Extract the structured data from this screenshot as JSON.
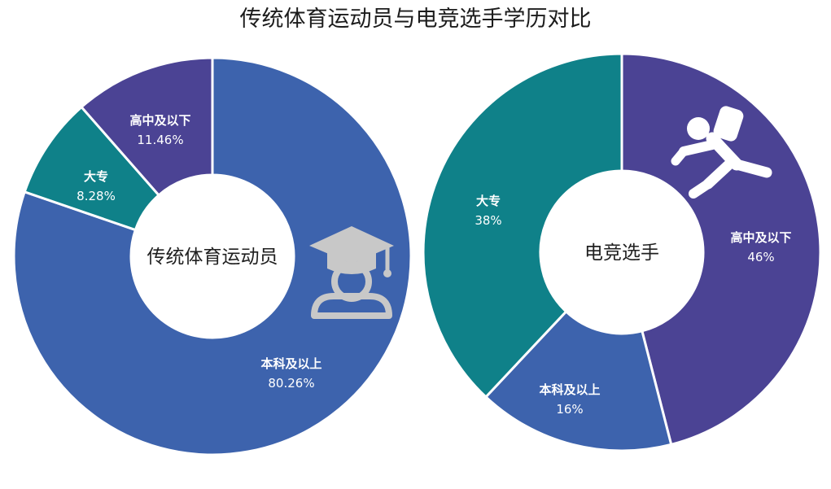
{
  "title": "传统体育运动员与电竞选手学历对比",
  "chart_data": [
    {
      "type": "pie",
      "name": "传统体育运动员",
      "slices": [
        {
          "label": "本科及以上",
          "value": 80.26,
          "value_text": "80.26%",
          "color": "#3d63ad"
        },
        {
          "label": "大专",
          "value": 8.28,
          "value_text": "8.28%",
          "color": "#0f8189"
        },
        {
          "label": "高中及以下",
          "value": 11.46,
          "value_text": "11.46%",
          "color": "#4b4394"
        }
      ],
      "icon": "graduate-icon"
    },
    {
      "type": "pie",
      "name": "电竞选手",
      "slices": [
        {
          "label": "高中及以下",
          "value": 46,
          "value_text": "46%",
          "color": "#4b4394"
        },
        {
          "label": "本科及以上",
          "value": 16,
          "value_text": "16%",
          "color": "#3d63ad"
        },
        {
          "label": "大专",
          "value": 38,
          "value_text": "38%",
          "color": "#0f8189"
        }
      ],
      "icon": "running-person-icon"
    }
  ]
}
